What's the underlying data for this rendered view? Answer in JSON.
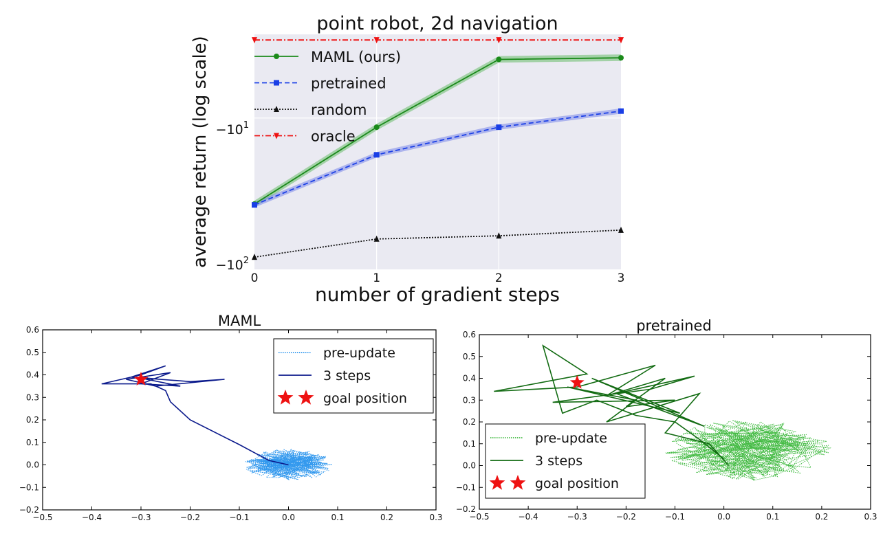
{
  "chart_data": [
    {
      "type": "line",
      "title": "point robot, 2d navigation",
      "xlabel": "number of gradient steps",
      "ylabel": "average return (log scale)",
      "x": [
        0,
        1,
        2,
        3
      ],
      "xticks": [
        "0",
        "1",
        "2",
        "3"
      ],
      "yscale": "symlog",
      "ylim": [
        -100,
        -2.8
      ],
      "xlim": [
        0,
        3
      ],
      "grid": true,
      "legend_position": "upper-left",
      "series": [
        {
          "name": "MAML (ours)",
          "values": [
            -37,
            -11.5,
            -4.1,
            -4.0
          ],
          "band": 0.05,
          "color": "#1a8a1a",
          "style": "solid",
          "marker": "circle",
          "band_color": "#5cb85c"
        },
        {
          "name": "pretrained",
          "values": [
            -37.5,
            -17.5,
            -11.5,
            -9.0
          ],
          "band": 0.04,
          "color": "#1a3fe6",
          "style": "dashed",
          "marker": "square",
          "band_color": "#6f7de8"
        },
        {
          "name": "random",
          "values": [
            -83,
            -63,
            -60,
            -55
          ],
          "band": 0,
          "color": "#111111",
          "style": "dotted",
          "marker": "triangle-up",
          "band_color": "#000000"
        },
        {
          "name": "oracle",
          "values": [
            -3.05,
            -3.05,
            -3.05,
            -3.05
          ],
          "band": 0,
          "color": "#ee1111",
          "style": "dashdot",
          "marker": "triangle-down",
          "band_color": "#ff9999"
        }
      ]
    },
    {
      "type": "line",
      "title": "MAML",
      "xlim": [
        -0.5,
        0.3
      ],
      "ylim": [
        -0.2,
        0.6
      ],
      "xticks": [
        "−0.5",
        "−0.4",
        "−0.3",
        "−0.2",
        "−0.1",
        "0.0",
        "0.1",
        "0.2",
        "0.3"
      ],
      "yticks": [
        "−0.2",
        "−0.1",
        "0.0",
        "0.1",
        "0.2",
        "0.3",
        "0.4",
        "0.5",
        "0.6"
      ],
      "legend_position": "upper-right",
      "goal": [
        -0.3,
        0.38
      ],
      "series": [
        {
          "name": "pre-update",
          "color": "#3399ee",
          "style": "dotted",
          "kind": "scribble",
          "center": [
            0.0,
            0.0
          ],
          "spread": [
            0.09,
            0.07
          ]
        },
        {
          "name": "3 steps",
          "color": "#0b1a8c",
          "style": "solid",
          "points": [
            [
              0.0,
              0.0
            ],
            [
              -0.04,
              0.02
            ],
            [
              -0.1,
              0.09
            ],
            [
              -0.2,
              0.2
            ],
            [
              -0.24,
              0.28
            ],
            [
              -0.25,
              0.33
            ],
            [
              -0.28,
              0.36
            ],
            [
              -0.38,
              0.36
            ],
            [
              -0.3,
              0.4
            ],
            [
              -0.25,
              0.44
            ],
            [
              -0.32,
              0.39
            ],
            [
              -0.2,
              0.37
            ],
            [
              -0.13,
              0.38
            ],
            [
              -0.27,
              0.35
            ],
            [
              -0.33,
              0.38
            ],
            [
              -0.24,
              0.41
            ],
            [
              -0.3,
              0.36
            ],
            [
              -0.22,
              0.35
            ],
            [
              -0.31,
              0.39
            ],
            [
              -0.26,
              0.38
            ]
          ]
        },
        {
          "name": "goal position",
          "color": "#ee1111",
          "style": "marker",
          "marker": "star"
        }
      ]
    },
    {
      "type": "line",
      "title": "pretrained",
      "xlim": [
        -0.5,
        0.3
      ],
      "ylim": [
        -0.2,
        0.6
      ],
      "xticks": [
        "−0.5",
        "−0.4",
        "−0.3",
        "−0.2",
        "−0.1",
        "0.0",
        "0.1",
        "0.2",
        "0.3"
      ],
      "yticks": [
        "−0.2",
        "−0.1",
        "0.0",
        "0.1",
        "0.2",
        "0.3",
        "0.4",
        "0.5",
        "0.6"
      ],
      "legend_position": "lower-left",
      "goal": [
        -0.3,
        0.38
      ],
      "series": [
        {
          "name": "pre-update",
          "color": "#44bb44",
          "style": "dotted",
          "kind": "scribble",
          "center": [
            0.05,
            0.07
          ],
          "spread": [
            0.17,
            0.14
          ]
        },
        {
          "name": "3 steps",
          "color": "#126b12",
          "style": "solid",
          "points": [
            [
              0.0,
              0.03
            ],
            [
              -0.05,
              0.12
            ],
            [
              -0.1,
              0.2
            ],
            [
              -0.18,
              0.23
            ],
            [
              -0.26,
              0.3
            ],
            [
              -0.33,
              0.24
            ],
            [
              -0.37,
              0.55
            ],
            [
              -0.28,
              0.42
            ],
            [
              -0.47,
              0.34
            ],
            [
              -0.3,
              0.36
            ],
            [
              -0.14,
              0.46
            ],
            [
              -0.24,
              0.32
            ],
            [
              -0.12,
              0.4
            ],
            [
              -0.2,
              0.27
            ],
            [
              -0.1,
              0.3
            ],
            [
              -0.35,
              0.29
            ],
            [
              -0.15,
              0.35
            ],
            [
              -0.06,
              0.41
            ],
            [
              -0.22,
              0.33
            ],
            [
              -0.04,
              0.18
            ],
            [
              -0.27,
              0.4
            ],
            [
              -0.09,
              0.24
            ],
            [
              -0.32,
              0.36
            ],
            [
              -0.18,
              0.3
            ],
            [
              -0.24,
              0.2
            ],
            [
              -0.05,
              0.33
            ],
            [
              -0.12,
              0.15
            ],
            [
              -0.03,
              0.1
            ],
            [
              0.01,
              0.0
            ]
          ]
        },
        {
          "name": "goal position",
          "color": "#ee1111",
          "style": "marker",
          "marker": "star"
        }
      ]
    }
  ]
}
